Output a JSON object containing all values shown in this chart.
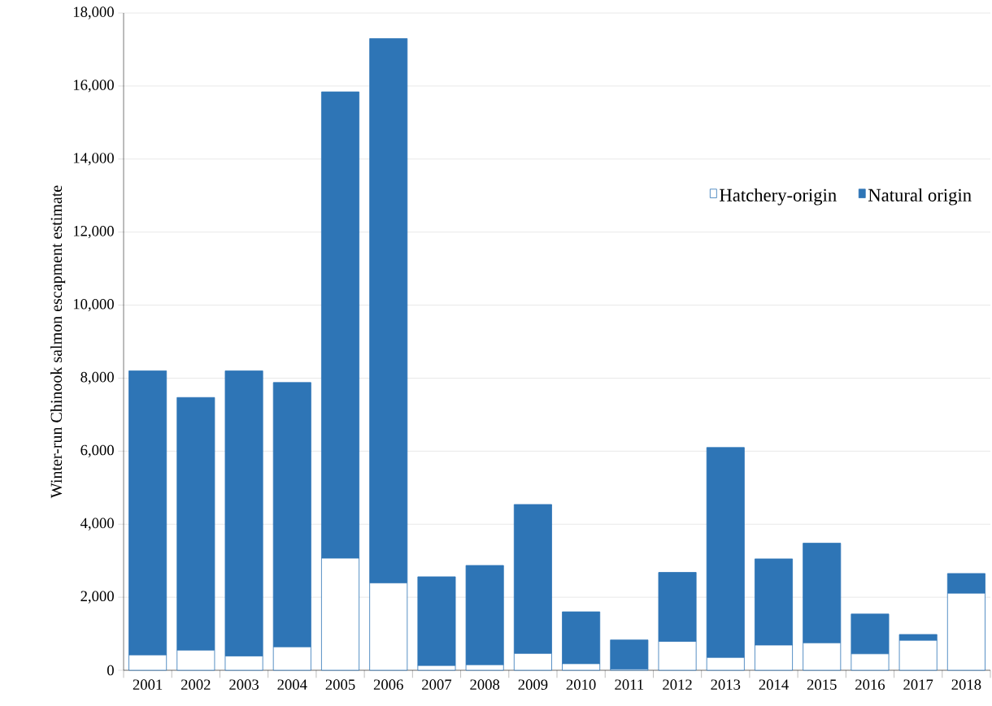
{
  "chart_data": {
    "type": "bar",
    "stacked": true,
    "ylabel": "Winter-run Chinook salmon escapment  estimate",
    "categories": [
      "2001",
      "2002",
      "2003",
      "2004",
      "2005",
      "2006",
      "2007",
      "2008",
      "2009",
      "2010",
      "2011",
      "2012",
      "2013",
      "2014",
      "2015",
      "2016",
      "2017",
      "2018"
    ],
    "series": [
      {
        "name": "Hatchery-origin",
        "color": "#2e75b6",
        "values": [
          420,
          550,
          390,
          640,
          3070,
          2390,
          130,
          150,
          460,
          180,
          30,
          790,
          350,
          690,
          750,
          450,
          820,
          2110
        ]
      },
      {
        "name": "Natural origin",
        "color": "#2e75b6",
        "values": [
          7780,
          6920,
          7810,
          7240,
          12770,
          14910,
          2430,
          2720,
          4080,
          1420,
          800,
          1890,
          5750,
          2360,
          2730,
          1090,
          160,
          540
        ]
      }
    ],
    "ylim": [
      0,
      18000
    ],
    "yticks": [
      {
        "value": 0,
        "label": "0"
      },
      {
        "value": 2000,
        "label": "2,000"
      },
      {
        "value": 4000,
        "label": "4,000"
      },
      {
        "value": 6000,
        "label": "6,000"
      },
      {
        "value": 8000,
        "label": "8,000"
      },
      {
        "value": 10000,
        "label": "10,000"
      },
      {
        "value": 12000,
        "label": "12,000"
      },
      {
        "value": 14000,
        "label": "14,000"
      },
      {
        "value": 16000,
        "label": "16,000"
      },
      {
        "value": 18000,
        "label": "18,000"
      }
    ],
    "grid": "y",
    "legend": "top right"
  }
}
